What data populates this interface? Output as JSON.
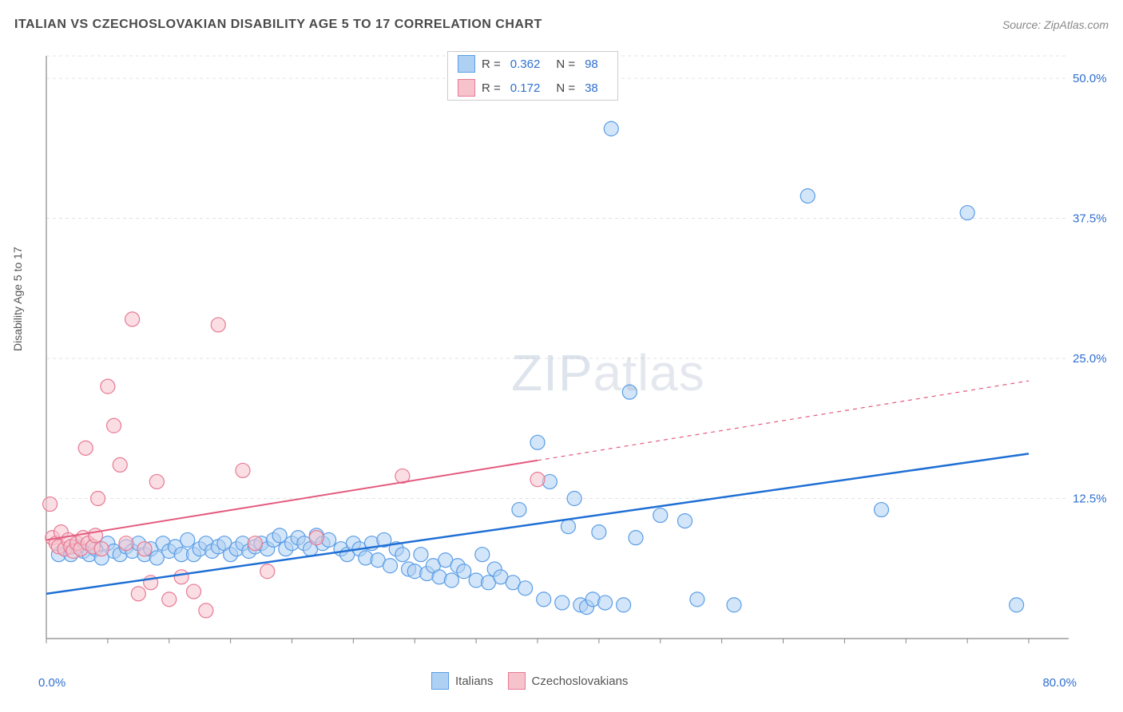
{
  "title": "ITALIAN VS CZECHOSLOVAKIAN DISABILITY AGE 5 TO 17 CORRELATION CHART",
  "source": "Source: ZipAtlas.com",
  "ylabel": "Disability Age 5 to 17",
  "watermark": {
    "zip": "ZIP",
    "atlas": "atlas"
  },
  "stats_legend": [
    {
      "r_label": "R =",
      "r_value": "0.362",
      "n_label": "N =",
      "n_value": "98",
      "fill": "#aed0f3",
      "stroke": "#5a9de6"
    },
    {
      "r_label": "R =",
      "r_value": "0.172",
      "n_label": "N =",
      "n_value": "38",
      "fill": "#f6c3cd",
      "stroke": "#e77a94"
    }
  ],
  "series_legend": [
    {
      "label": "Italians",
      "fill": "#aed0f3",
      "stroke": "#5a9de6"
    },
    {
      "label": "Czechoslovakians",
      "fill": "#f6c3cd",
      "stroke": "#e77a94"
    }
  ],
  "chart": {
    "type": "scatter",
    "xlim": [
      0,
      80
    ],
    "ylim": [
      0,
      52
    ],
    "x_axis_labels": {
      "min": "0.0%",
      "max": "80.0%"
    },
    "y_ticks": [
      {
        "v": 12.5,
        "label": "12.5%"
      },
      {
        "v": 25.0,
        "label": "25.0%"
      },
      {
        "v": 37.5,
        "label": "37.5%"
      },
      {
        "v": 50.0,
        "label": "50.0%"
      }
    ],
    "x_tick_positions": [
      0,
      5,
      10,
      15,
      20,
      25,
      30,
      35,
      40,
      45,
      50,
      55,
      60,
      65,
      70,
      75,
      80
    ],
    "grid_color": "#e3e3e3",
    "axis_color": "#888",
    "background_color": "#ffffff",
    "marker_radius": 9,
    "marker_opacity": 0.55,
    "trend_lines": [
      {
        "color": "#1f6fd4",
        "width": 2.5,
        "x1": 0,
        "y1": 4.0,
        "x2": 80,
        "y2": 16.5,
        "dash_from_x": null
      },
      {
        "color": "#e35b7e",
        "width": 2.0,
        "x1": 0,
        "y1": 8.8,
        "x2": 80,
        "y2": 23.0,
        "dash_from_x": 40
      }
    ],
    "series": [
      {
        "name": "Italians",
        "fill": "#aed0f3",
        "stroke": "#5a9de6",
        "points": [
          [
            1,
            7.5
          ],
          [
            1.5,
            8
          ],
          [
            2,
            7.5
          ],
          [
            2.5,
            8.2
          ],
          [
            3,
            7.8
          ],
          [
            3.5,
            7.5
          ],
          [
            4,
            8
          ],
          [
            4.5,
            7.2
          ],
          [
            5,
            8.5
          ],
          [
            5.5,
            7.8
          ],
          [
            6,
            7.5
          ],
          [
            6.5,
            8.2
          ],
          [
            7,
            7.8
          ],
          [
            7.5,
            8.5
          ],
          [
            8,
            7.5
          ],
          [
            8.5,
            8
          ],
          [
            9,
            7.2
          ],
          [
            9.5,
            8.5
          ],
          [
            10,
            7.8
          ],
          [
            10.5,
            8.2
          ],
          [
            11,
            7.5
          ],
          [
            11.5,
            8.8
          ],
          [
            12,
            7.5
          ],
          [
            12.5,
            8
          ],
          [
            13,
            8.5
          ],
          [
            13.5,
            7.8
          ],
          [
            14,
            8.2
          ],
          [
            14.5,
            8.5
          ],
          [
            15,
            7.5
          ],
          [
            15.5,
            8
          ],
          [
            16,
            8.5
          ],
          [
            16.5,
            7.8
          ],
          [
            17,
            8.2
          ],
          [
            17.5,
            8.5
          ],
          [
            18,
            8
          ],
          [
            18.5,
            8.8
          ],
          [
            19,
            9.2
          ],
          [
            19.5,
            8
          ],
          [
            20,
            8.5
          ],
          [
            20.5,
            9
          ],
          [
            21,
            8.5
          ],
          [
            21.5,
            8
          ],
          [
            22,
            9.2
          ],
          [
            22.5,
            8.5
          ],
          [
            23,
            8.8
          ],
          [
            24,
            8
          ],
          [
            24.5,
            7.5
          ],
          [
            25,
            8.5
          ],
          [
            25.5,
            8
          ],
          [
            26,
            7.2
          ],
          [
            26.5,
            8.5
          ],
          [
            27,
            7
          ],
          [
            27.5,
            8.8
          ],
          [
            28,
            6.5
          ],
          [
            28.5,
            8
          ],
          [
            29,
            7.5
          ],
          [
            29.5,
            6.2
          ],
          [
            30,
            6
          ],
          [
            30.5,
            7.5
          ],
          [
            31,
            5.8
          ],
          [
            31.5,
            6.5
          ],
          [
            32,
            5.5
          ],
          [
            32.5,
            7
          ],
          [
            33,
            5.2
          ],
          [
            33.5,
            6.5
          ],
          [
            34,
            6
          ],
          [
            35,
            5.2
          ],
          [
            35.5,
            7.5
          ],
          [
            36,
            5
          ],
          [
            36.5,
            6.2
          ],
          [
            37,
            5.5
          ],
          [
            38,
            5
          ],
          [
            38.5,
            11.5
          ],
          [
            39,
            4.5
          ],
          [
            40,
            17.5
          ],
          [
            40.5,
            3.5
          ],
          [
            41,
            14
          ],
          [
            42,
            3.2
          ],
          [
            42.5,
            10
          ],
          [
            43,
            12.5
          ],
          [
            43.5,
            3
          ],
          [
            44,
            2.8
          ],
          [
            44.5,
            3.5
          ],
          [
            45,
            9.5
          ],
          [
            45.5,
            3.2
          ],
          [
            46,
            45.5
          ],
          [
            47,
            3
          ],
          [
            47.5,
            22
          ],
          [
            48,
            9
          ],
          [
            50,
            11
          ],
          [
            52,
            10.5
          ],
          [
            53,
            3.5
          ],
          [
            56,
            3
          ],
          [
            62,
            39.5
          ],
          [
            68,
            11.5
          ],
          [
            75,
            38
          ],
          [
            79,
            3
          ]
        ]
      },
      {
        "name": "Czechoslovakians",
        "fill": "#f6c3cd",
        "stroke": "#e77a94",
        "points": [
          [
            0.3,
            12
          ],
          [
            0.5,
            9
          ],
          [
            0.8,
            8.5
          ],
          [
            1,
            8.2
          ],
          [
            1.2,
            9.5
          ],
          [
            1.5,
            8
          ],
          [
            1.8,
            8.8
          ],
          [
            2,
            8.2
          ],
          [
            2.2,
            7.8
          ],
          [
            2.5,
            8.5
          ],
          [
            2.8,
            8
          ],
          [
            3,
            9
          ],
          [
            3.2,
            17
          ],
          [
            3.4,
            8.5
          ],
          [
            3.8,
            8.2
          ],
          [
            4,
            9.2
          ],
          [
            4.2,
            12.5
          ],
          [
            4.5,
            8
          ],
          [
            5,
            22.5
          ],
          [
            5.5,
            19
          ],
          [
            6,
            15.5
          ],
          [
            6.5,
            8.5
          ],
          [
            7,
            28.5
          ],
          [
            7.5,
            4
          ],
          [
            8,
            8
          ],
          [
            8.5,
            5
          ],
          [
            9,
            14
          ],
          [
            10,
            3.5
          ],
          [
            11,
            5.5
          ],
          [
            12,
            4.2
          ],
          [
            13,
            2.5
          ],
          [
            14,
            28
          ],
          [
            16,
            15
          ],
          [
            17,
            8.5
          ],
          [
            18,
            6
          ],
          [
            22,
            9
          ],
          [
            29,
            14.5
          ],
          [
            40,
            14.2
          ]
        ]
      }
    ]
  }
}
